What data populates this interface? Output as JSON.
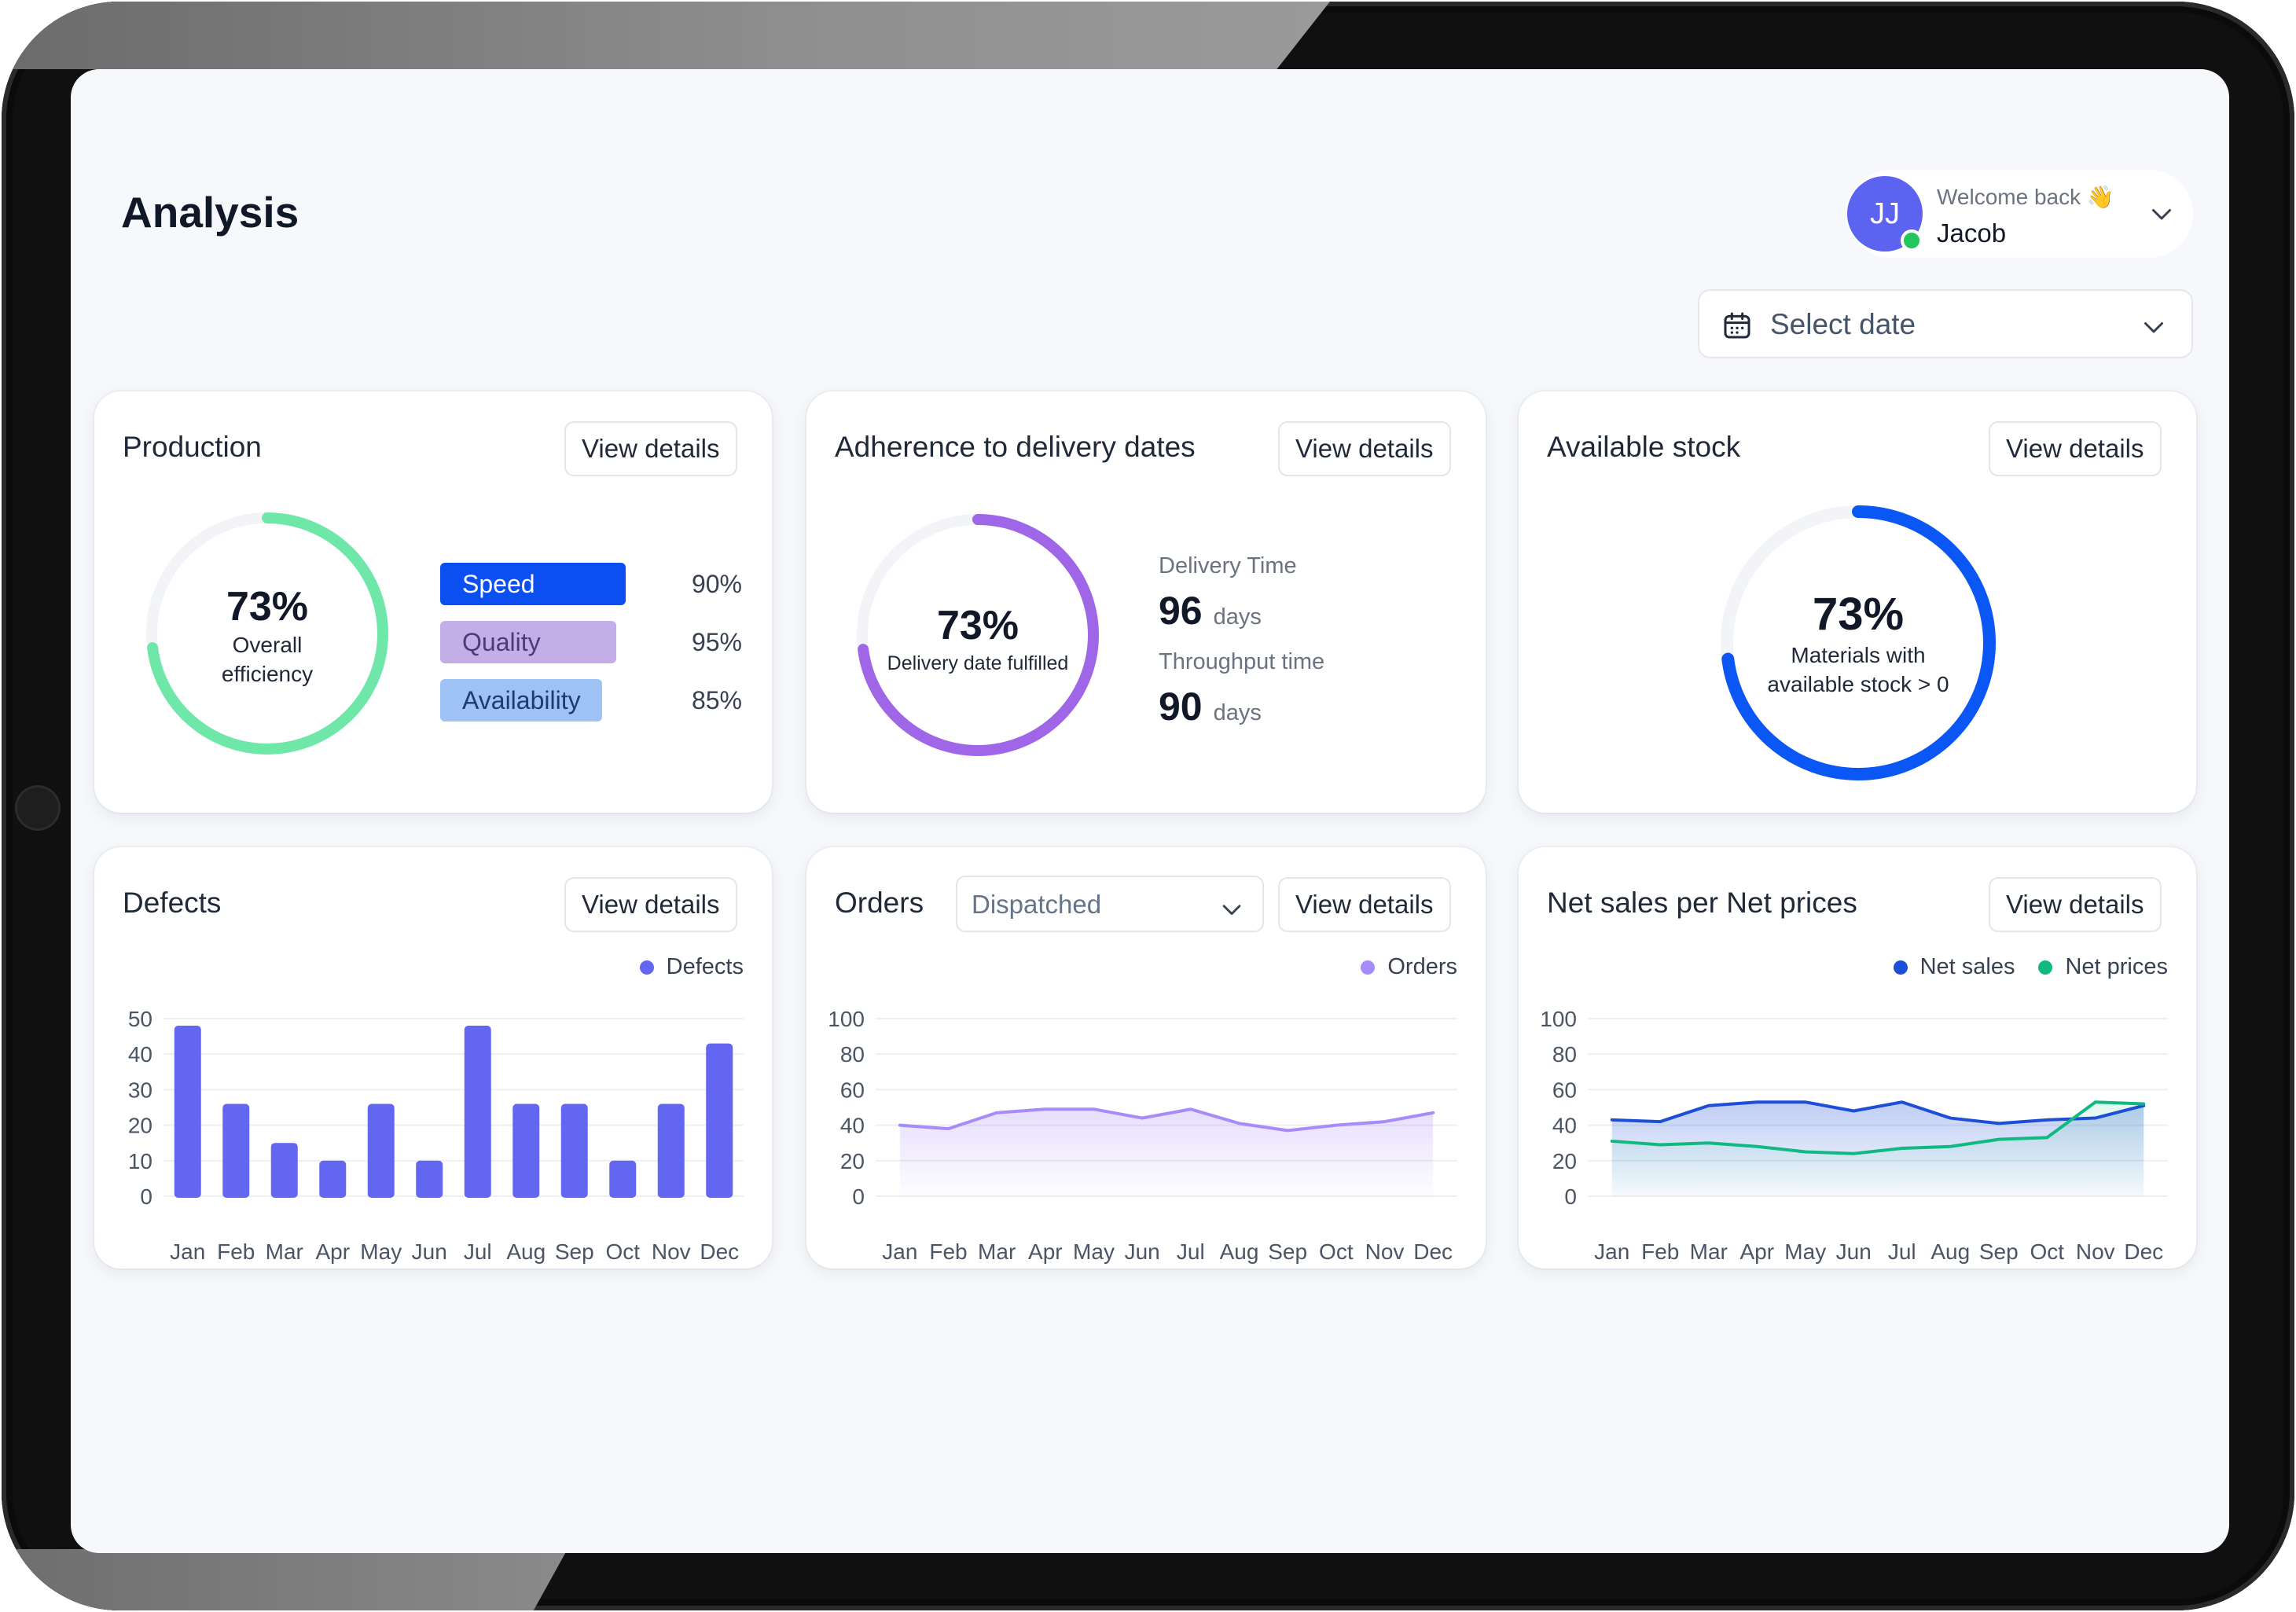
{
  "header": {
    "title": "Analysis",
    "user": {
      "initials": "JJ",
      "welcome": "Welcome back 👋",
      "name": "Jacob"
    },
    "date_select": {
      "placeholder": "Select date"
    }
  },
  "view_details_label": "View details",
  "production": {
    "title": "Production",
    "ring": {
      "percent": "73%",
      "line1": "Overall",
      "line2": "efficiency",
      "value": 73,
      "color": "#6ee7a8"
    },
    "metrics": [
      {
        "label": "Speed",
        "value": "90%",
        "color": "#0b4ff0",
        "text_color": "#ffffff"
      },
      {
        "label": "Quality",
        "value": "95%",
        "color": "#c3aee8",
        "text_color": "#4c3a7a"
      },
      {
        "label": "Availability",
        "value": "85%",
        "color": "#9fc2f5",
        "text_color": "#1e3a6e"
      }
    ]
  },
  "delivery": {
    "title": "Adherence to delivery dates",
    "ring": {
      "percent": "73%",
      "label": "Delivery date fulfilled",
      "value": 73,
      "color": "#a066e8"
    },
    "delivery_time": {
      "label": "Delivery Time",
      "value": "96",
      "unit": "days"
    },
    "throughput_time": {
      "label": "Throughput time",
      "value": "90",
      "unit": "days"
    }
  },
  "stock": {
    "title": "Available stock",
    "ring": {
      "percent": "73%",
      "line1": "Materials with",
      "line2": "available stock > 0",
      "value": 73,
      "color": "#0b57f5"
    }
  },
  "defects": {
    "title": "Defects",
    "legend": "Defects"
  },
  "orders": {
    "title": "Orders",
    "filter": {
      "selected": "Dispatched"
    },
    "legend": "Orders"
  },
  "net_sales": {
    "title": "Net sales per Net prices",
    "legend": [
      "Net sales",
      "Net prices"
    ]
  },
  "chart_data": [
    {
      "type": "bar",
      "title": "Defects",
      "categories": [
        "Jan",
        "Feb",
        "Mar",
        "Apr",
        "May",
        "Jun",
        "Jul",
        "Aug",
        "Sep",
        "Oct",
        "Nov",
        "Dec"
      ],
      "series": [
        {
          "name": "Defects",
          "color": "#6366f1",
          "values": [
            48,
            26,
            15,
            10,
            26,
            10,
            48,
            26,
            26,
            10,
            26,
            43
          ]
        }
      ],
      "ylim": [
        0,
        50
      ],
      "yticks": [
        0,
        10,
        20,
        30,
        40,
        50
      ]
    },
    {
      "type": "area",
      "title": "Orders",
      "categories": [
        "Jan",
        "Feb",
        "Mar",
        "Apr",
        "May",
        "Jun",
        "Jul",
        "Aug",
        "Sep",
        "Oct",
        "Nov",
        "Dec"
      ],
      "series": [
        {
          "name": "Orders",
          "color": "#a78bfa",
          "values": [
            40,
            38,
            47,
            49,
            49,
            44,
            49,
            41,
            37,
            40,
            42,
            47
          ]
        }
      ],
      "ylim": [
        0,
        100
      ],
      "yticks": [
        0,
        20,
        40,
        60,
        80,
        100
      ]
    },
    {
      "type": "area",
      "title": "Net sales per Net prices",
      "categories": [
        "Jan",
        "Feb",
        "Mar",
        "Apr",
        "May",
        "Jun",
        "Jul",
        "Aug",
        "Sep",
        "Oct",
        "Nov",
        "Dec"
      ],
      "series": [
        {
          "name": "Net sales",
          "color": "#1d4ed8",
          "values": [
            43,
            42,
            51,
            53,
            53,
            48,
            53,
            44,
            41,
            43,
            44,
            51
          ]
        },
        {
          "name": "Net prices",
          "color": "#10b981",
          "values": [
            31,
            29,
            30,
            28,
            25,
            24,
            27,
            28,
            32,
            33,
            53,
            52
          ]
        }
      ],
      "ylim": [
        0,
        100
      ],
      "yticks": [
        0,
        20,
        40,
        60,
        80,
        100
      ]
    }
  ]
}
